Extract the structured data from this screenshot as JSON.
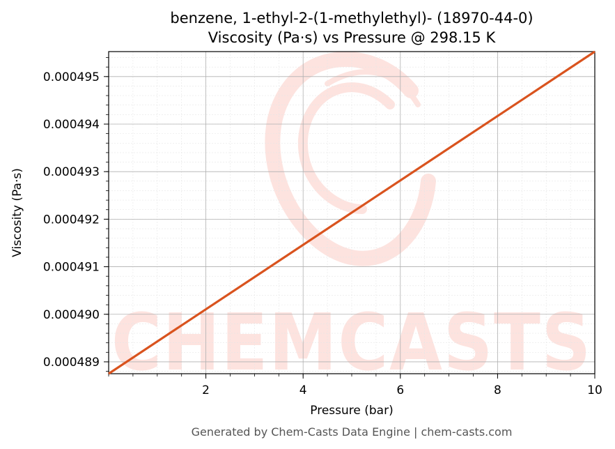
{
  "chart_data": {
    "type": "line",
    "title_line1": "benzene, 1-ethyl-2-(1-methylethyl)- (18970-44-0)",
    "title_line2": "Viscosity (Pa·s) vs Pressure @ 298.15 K",
    "xlabel": "Pressure (bar)",
    "ylabel": "Viscosity (Pa·s)",
    "xlim": [
      0.0,
      10.0
    ],
    "ylim": [
      0.00048875,
      0.000495525
    ],
    "x_ticks": [
      2,
      4,
      6,
      8,
      10
    ],
    "x_tick_labels": [
      "2",
      "4",
      "6",
      "8",
      "10"
    ],
    "y_ticks": [
      0.000489,
      0.00049,
      0.000491,
      0.000492,
      0.000493,
      0.000494,
      0.000495
    ],
    "y_tick_labels": [
      "0.000489",
      "0.000490",
      "0.000491",
      "0.000492",
      "0.000493",
      "0.000494",
      "0.000495"
    ],
    "grid": true,
    "series": [
      {
        "color": "#d9531e",
        "x": [
          0.0,
          10.0
        ],
        "y": [
          0.00048875,
          0.000495525
        ]
      }
    ]
  },
  "watermark": {
    "text": "CHEMCASTS",
    "color": "#fde3df"
  },
  "footer": "Generated by Chem-Casts Data Engine | chem-casts.com"
}
